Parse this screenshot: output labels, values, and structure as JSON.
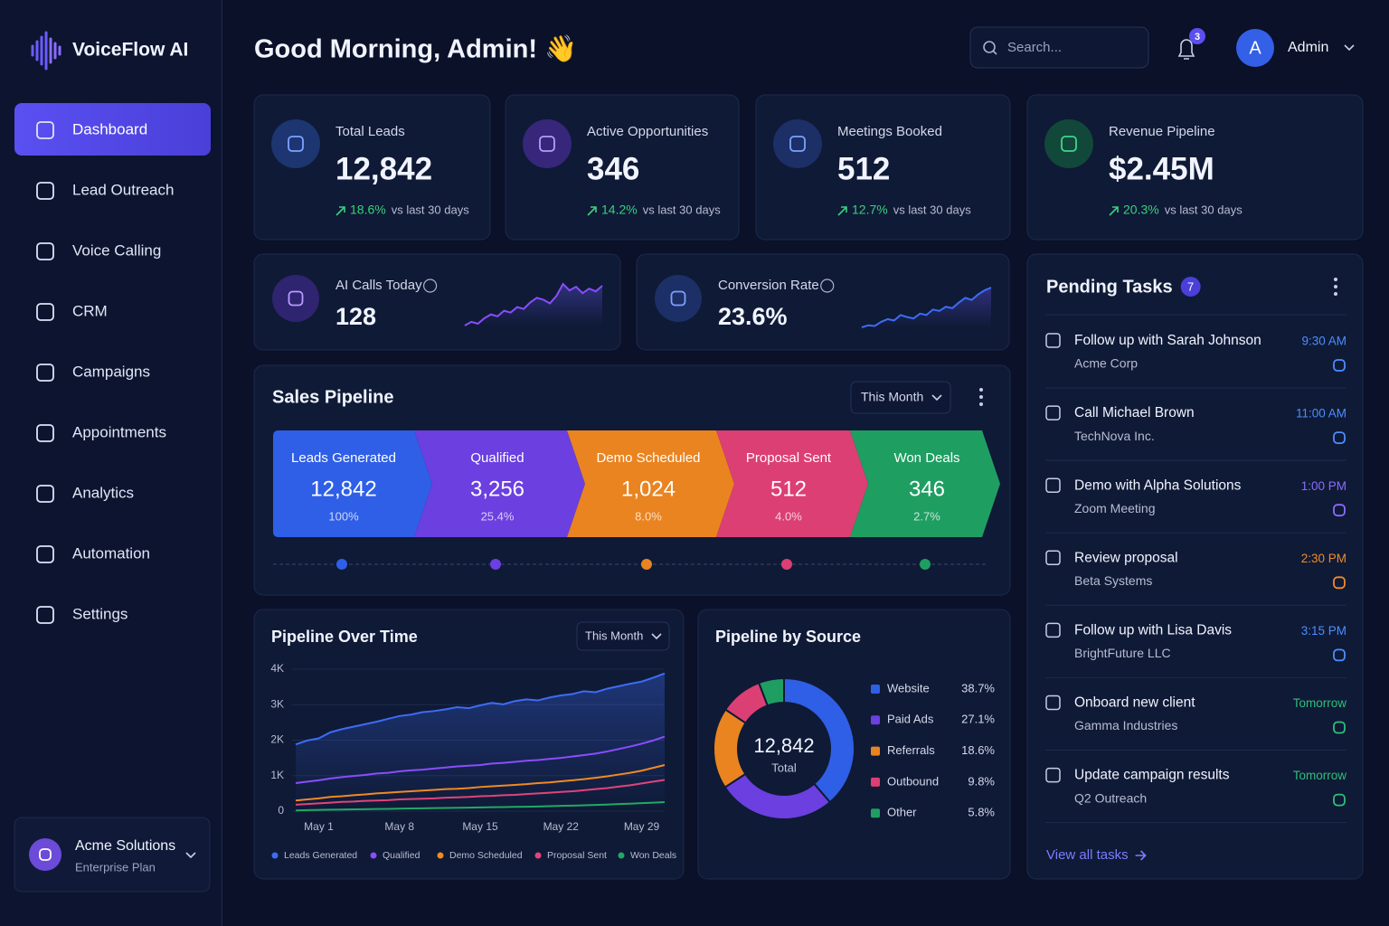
{
  "brand": "VoiceFlow AI",
  "nav": [
    "Dashboard",
    "Lead Outreach",
    "Voice Calling",
    "CRM",
    "Campaigns",
    "Appointments",
    "Analytics",
    "Automation",
    "Settings"
  ],
  "workspace": {
    "name": "Acme Solutions",
    "plan": "Enterprise Plan"
  },
  "greeting": "Good Morning, Admin! 👋",
  "search_placeholder": "Search...",
  "notifications": "3",
  "user": {
    "initial": "A",
    "name": "Admin"
  },
  "kpis": [
    {
      "label": "Total Leads",
      "value": "12,842",
      "change": "18.6%",
      "note": "vs last 30 days"
    },
    {
      "label": "Active Opportunities",
      "value": "346",
      "change": "14.2%",
      "note": "vs last 30 days"
    },
    {
      "label": "Meetings Booked",
      "value": "512",
      "change": "12.7%",
      "note": "vs last 30 days"
    },
    {
      "label": "Revenue Pipeline",
      "value": "$2.45M",
      "change": "20.3%",
      "note": "vs last 30 days"
    }
  ],
  "mini_kpis": [
    {
      "label": "AI Calls Today",
      "value": "128"
    },
    {
      "label": "Conversion Rate",
      "value": "23.6%"
    }
  ],
  "sales_pipeline": {
    "title": "Sales Pipeline",
    "filter": "This Month",
    "stages": [
      {
        "name": "Leads Generated",
        "value": "12,842",
        "share": "100%",
        "color": "#2f5fe6"
      },
      {
        "name": "Qualified",
        "value": "3,256",
        "share": "25.4%",
        "color": "#6b3fe0"
      },
      {
        "name": "Demo Scheduled",
        "value": "1,024",
        "share": "8.0%",
        "color": "#ea8420"
      },
      {
        "name": "Proposal Sent",
        "value": "512",
        "share": "4.0%",
        "color": "#dc3f73"
      },
      {
        "name": "Won Deals",
        "value": "346",
        "share": "2.7%",
        "color": "#1f9e62"
      }
    ]
  },
  "tasks": {
    "title": "Pending Tasks",
    "count": "7",
    "items": [
      {
        "title": "Follow up with Sarah Johnson",
        "sub": "Acme Corp",
        "time": "9:30 AM",
        "color": "#4c8dff"
      },
      {
        "title": "Call Michael Brown",
        "sub": "TechNova Inc.",
        "time": "11:00 AM",
        "color": "#4c8dff"
      },
      {
        "title": "Demo with Alpha Solutions",
        "sub": "Zoom Meeting",
        "time": "1:00 PM",
        "color": "#8b6cff"
      },
      {
        "title": "Review proposal",
        "sub": "Beta Systems",
        "time": "2:30 PM",
        "color": "#f08a2a"
      },
      {
        "title": "Follow up with Lisa Davis",
        "sub": "BrightFuture LLC",
        "time": "3:15 PM",
        "color": "#4c8dff"
      },
      {
        "title": "Onboard new client",
        "sub": "Gamma Industries",
        "time": "Tomorrow",
        "color": "#2fbf7a"
      },
      {
        "title": "Update campaign results",
        "sub": "Q2 Outreach",
        "time": "Tomorrow",
        "color": "#2fbf7a"
      }
    ],
    "link": "View all tasks"
  },
  "chart_data": [
    {
      "type": "line",
      "title": "Pipeline Over Time",
      "filter": "This Month",
      "categories": [
        null,
        null,
        "May 1",
        null,
        null,
        null,
        null,
        null,
        null,
        "May 8",
        null,
        null,
        null,
        null,
        null,
        null,
        "May 15",
        null,
        null,
        null,
        null,
        null,
        null,
        "May 22",
        null,
        null,
        null,
        null,
        null,
        null,
        "May 29",
        null,
        null
      ],
      "ylim": [
        0,
        4000
      ],
      "yticks": [
        0,
        {
          "value": 1000,
          "label": "1K"
        },
        {
          "value": 2000,
          "label": "2K"
        },
        {
          "value": 3000,
          "label": "3K"
        },
        {
          "value": 4000,
          "label": "4K"
        }
      ],
      "grid": true,
      "series": [
        {
          "name": "Leads Generated",
          "color": "#3d6cf5",
          "values": [
            1880,
            1990,
            2050,
            2220,
            2310,
            2380,
            2450,
            2520,
            2600,
            2680,
            2720,
            2790,
            2820,
            2870,
            2930,
            2900,
            2980,
            3050,
            3010,
            3100,
            3150,
            3120,
            3200,
            3260,
            3300,
            3380,
            3350,
            3450,
            3520,
            3590,
            3650,
            3760,
            3880
          ]
        },
        {
          "name": "Qualified",
          "color": "#8a4dff",
          "values": [
            790,
            830,
            870,
            920,
            960,
            990,
            1020,
            1060,
            1080,
            1120,
            1150,
            1170,
            1200,
            1230,
            1260,
            1280,
            1300,
            1340,
            1360,
            1390,
            1420,
            1440,
            1470,
            1500,
            1540,
            1580,
            1620,
            1680,
            1750,
            1820,
            1900,
            1990,
            2100
          ]
        },
        {
          "name": "Demo Scheduled",
          "color": "#f08a24",
          "values": [
            300,
            330,
            360,
            400,
            420,
            450,
            470,
            500,
            520,
            540,
            560,
            580,
            600,
            620,
            630,
            650,
            680,
            700,
            720,
            740,
            760,
            790,
            810,
            840,
            870,
            900,
            940,
            980,
            1030,
            1080,
            1140,
            1220,
            1300
          ]
        },
        {
          "name": "Proposal Sent",
          "color": "#e0447a",
          "values": [
            180,
            200,
            220,
            240,
            260,
            270,
            290,
            300,
            310,
            330,
            340,
            350,
            360,
            380,
            390,
            400,
            420,
            430,
            450,
            460,
            480,
            500,
            520,
            540,
            560,
            590,
            620,
            650,
            690,
            730,
            780,
            830,
            880
          ]
        },
        {
          "name": "Won Deals",
          "color": "#22a866",
          "values": [
            20,
            30,
            35,
            40,
            45,
            50,
            55,
            60,
            65,
            70,
            75,
            80,
            85,
            90,
            95,
            100,
            105,
            110,
            115,
            120,
            125,
            130,
            140,
            150,
            155,
            165,
            175,
            185,
            200,
            210,
            225,
            240,
            255
          ]
        }
      ]
    },
    {
      "type": "pie",
      "title": "Pipeline by Source",
      "center_value": "12,842",
      "center_label": "Total",
      "categories": [
        "Website",
        "Paid Ads",
        "Referrals",
        "Outbound",
        "Other"
      ],
      "values": [
        38.7,
        27.1,
        18.6,
        9.8,
        5.8
      ],
      "value_labels": [
        "38.7%",
        "27.1%",
        "18.6%",
        "9.8%",
        "5.8%"
      ],
      "colors": [
        "#2f5fe6",
        "#6b3fe0",
        "#ea8420",
        "#dc3f73",
        "#1f9e62"
      ]
    },
    {
      "type": "area",
      "color": "#8a4dff",
      "values": [
        10,
        14,
        12,
        18,
        22,
        20,
        26,
        24,
        30,
        28,
        35,
        40,
        38,
        34,
        42,
        55,
        48,
        52,
        45,
        50,
        47,
        53
      ]
    },
    {
      "type": "area",
      "color": "#3d6cf5",
      "values": [
        12,
        15,
        14,
        20,
        24,
        22,
        30,
        27,
        25,
        32,
        30,
        38,
        36,
        42,
        40,
        48,
        55,
        52,
        60,
        66,
        70
      ]
    }
  ]
}
